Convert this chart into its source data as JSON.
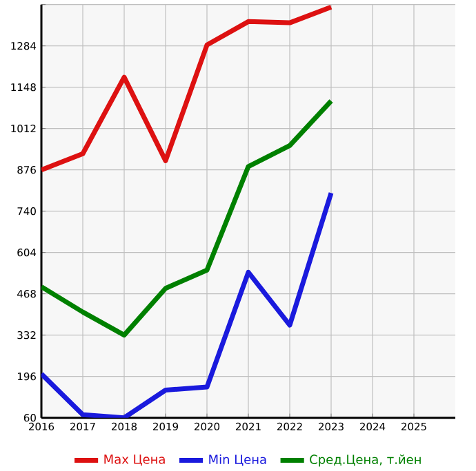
{
  "chart_data": {
    "type": "line",
    "x": [
      2016,
      2017,
      2018,
      2019,
      2020,
      2021,
      2022,
      2023
    ],
    "series": [
      {
        "name": "Max Цена",
        "color": "#dd1111",
        "values": [
          876,
          929,
          1181,
          906,
          1287,
          1364,
          1360,
          1412
        ]
      },
      {
        "name": "Min Цена",
        "color": "#1a1add",
        "values": [
          204,
          70,
          60,
          151,
          161,
          539,
          365,
          800
        ]
      },
      {
        "name": "Сред.Цена, т.йен",
        "color": "#008000",
        "values": [
          491,
          408,
          332,
          486,
          546,
          887,
          956,
          1103
        ]
      }
    ],
    "xlim": [
      2016,
      2026
    ],
    "xticks": [
      2016,
      2017,
      2018,
      2019,
      2020,
      2021,
      2022,
      2023,
      2024,
      2025
    ],
    "ylim": [
      60,
      1420
    ],
    "yticks": [
      60,
      196,
      332,
      468,
      604,
      740,
      876,
      1012,
      1148,
      1284,
      {
        "value": 1420,
        "label": null
      }
    ],
    "grid": true,
    "legend": "bottom",
    "marker": "none",
    "line_style": "solid"
  }
}
